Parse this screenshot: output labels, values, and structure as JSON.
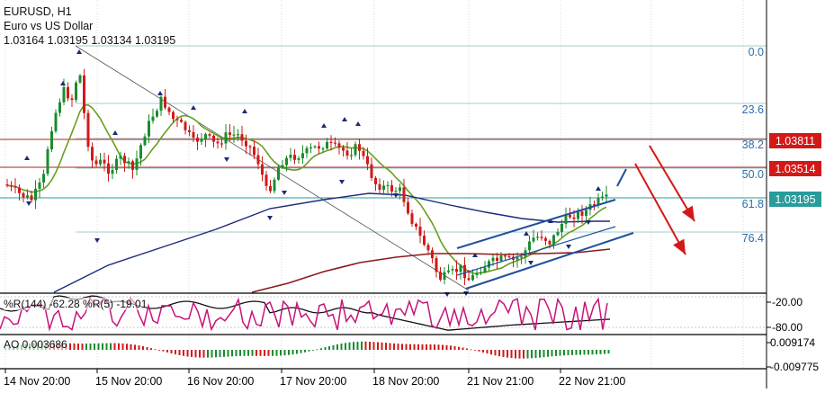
{
  "symbol": "EURUSD, H1",
  "description": "Euro vs US Dollar",
  "ohlc": "1.03164 1.03195 1.03134 1.03195",
  "colors": {
    "bull": "#1a8c2e",
    "bear": "#d11a1a",
    "ma_fast": "#6a9e1f",
    "ma_mid": "#1c2a7a",
    "ma_slow": "#8b1a1a",
    "channel": "#1f4e9c",
    "fib": "#4a9e9e",
    "arrow": "#d31818",
    "wpr144": "#111111",
    "wpr5": "#c8137a",
    "grid": "#cfe3e3"
  },
  "chart_data": [
    {
      "type": "candlestick",
      "title": "EURUSD, H1",
      "subtitle": "Euro vs US Dollar",
      "x_ticks": [
        "14 Nov 20:00",
        "15 Nov 20:00",
        "16 Nov 20:00",
        "17 Nov 20:00",
        "18 Nov 20:00",
        "21 Nov 21:00",
        "22 Nov 21:00"
      ],
      "price_tags": [
        {
          "value": "1.03811",
          "color": "#d31818"
        },
        {
          "value": "1.03514",
          "color": "#d31818"
        },
        {
          "value": "1.03195",
          "color": "#2a9b9b"
        }
      ],
      "fibonacci_levels": [
        "0.0",
        "23.6",
        "38.2",
        "50.0",
        "61.8",
        "76.4"
      ],
      "indicators": [
        "MA fast",
        "MA mid",
        "MA slow",
        "Fractals",
        "Fibonacci retracement",
        "Regression channel"
      ],
      "last_price": 1.03195,
      "grid": true
    },
    {
      "type": "line",
      "title": "%R(144) -62.28 %R(5) -19.01",
      "y_ticks": [
        "-20.00",
        "-80.00"
      ],
      "series": [
        {
          "name": "%R(144)",
          "last": -62.28
        },
        {
          "name": "%R(5)",
          "last": -19.01
        }
      ]
    },
    {
      "type": "bar",
      "title": "AO 0.003686",
      "y_ticks": [
        "0.009174",
        "-0.009775"
      ],
      "last": 0.003686
    }
  ]
}
